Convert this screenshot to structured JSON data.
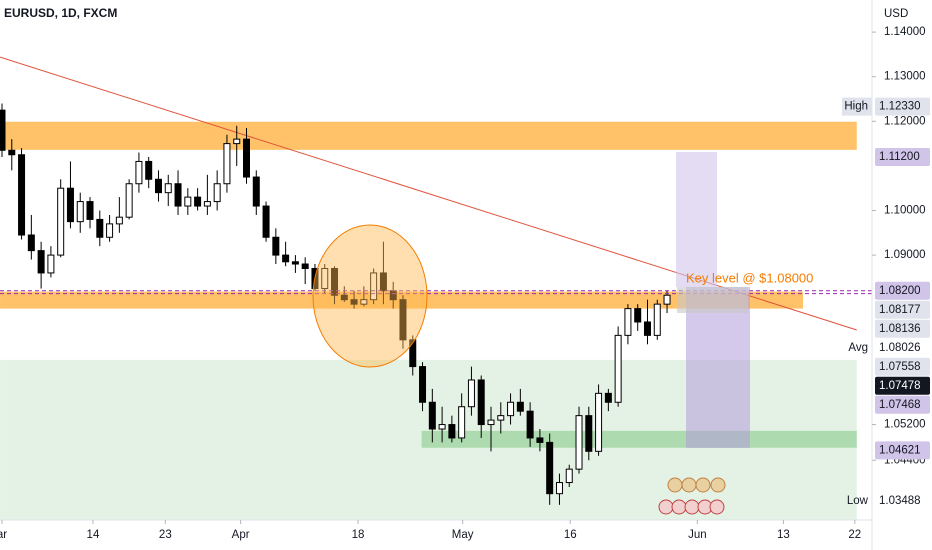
{
  "chart_data": {
    "type": "candlestick",
    "title": "EURUSD, 1D, FXCM",
    "currency": "USD",
    "annotation": "Key level @ $1.08000",
    "ylim": [
      1.0306,
      1.1472
    ],
    "yticks": [
      {
        "value": 1.14,
        "label": "1.14000"
      },
      {
        "value": 1.13,
        "label": "1.13000"
      },
      {
        "value": 1.12,
        "label": "1.12000"
      },
      {
        "value": 1.1,
        "label": "1.10000"
      },
      {
        "value": 1.09,
        "label": "1.09000"
      },
      {
        "value": 1.052,
        "label": "1.05200"
      },
      {
        "value": 1.044,
        "label": "1.04400"
      }
    ],
    "xticks": [
      {
        "value": 0,
        "label": "ar"
      },
      {
        "value": 9.3,
        "label": "14"
      },
      {
        "value": 16.7,
        "label": "23"
      },
      {
        "value": 24.4,
        "label": "Apr"
      },
      {
        "value": 36.4,
        "label": "18"
      },
      {
        "value": 47.1,
        "label": "May"
      },
      {
        "value": 58.1,
        "label": "16"
      },
      {
        "value": 71.1,
        "label": "Jun"
      },
      {
        "value": 79.9,
        "label": "13"
      },
      {
        "value": 87.2,
        "label": "22"
      }
    ],
    "up_color": "#ffffff",
    "down_color": "#000000",
    "open": [
      1.1225,
      1.1135,
      1.1125,
      1.0945,
      1.091,
      1.086,
      1.09,
      1.105,
      1.0975,
      1.102,
      1.098,
      1.094,
      1.097,
      1.0985,
      1.106,
      1.111,
      1.107,
      1.104,
      1.106,
      1.101,
      1.103,
      1.101,
      1.102,
      1.106,
      1.115,
      1.116,
      1.1075,
      1.101,
      1.094,
      1.09,
      1.0885,
      1.088,
      1.087,
      1.0825,
      1.087,
      1.081,
      1.08,
      1.079,
      1.08,
      1.086,
      1.082,
      1.08,
      1.071,
      1.065,
      1.057,
      1.051,
      1.052,
      1.049,
      1.056,
      1.062,
      1.052,
      1.053,
      1.054,
      1.057,
      1.055,
      1.049,
      1.048,
      1.0365,
      1.039,
      1.042,
      1.054,
      1.046,
      1.059,
      1.057,
      1.072,
      1.078,
      1.075,
      1.072,
      1.079
    ],
    "high": [
      1.124,
      1.116,
      1.114,
      1.099,
      1.093,
      1.092,
      1.107,
      1.111,
      1.104,
      1.103,
      1.1,
      1.099,
      1.103,
      1.107,
      1.113,
      1.112,
      1.109,
      1.108,
      1.109,
      1.105,
      1.105,
      1.108,
      1.109,
      1.117,
      1.119,
      1.1185,
      1.109,
      1.102,
      1.096,
      1.093,
      1.09,
      1.0895,
      1.088,
      1.088,
      1.0875,
      1.083,
      1.082,
      1.083,
      1.087,
      1.093,
      1.084,
      1.081,
      1.072,
      1.066,
      1.06,
      1.056,
      1.054,
      1.059,
      1.065,
      1.063,
      1.056,
      1.057,
      1.059,
      1.06,
      1.057,
      1.051,
      1.05,
      1.041,
      1.043,
      1.056,
      1.056,
      1.061,
      1.06,
      1.074,
      1.079,
      1.079,
      1.08,
      1.08,
      1.082
    ],
    "low": [
      1.112,
      1.109,
      1.0935,
      1.089,
      1.0825,
      1.085,
      1.0895,
      1.096,
      1.095,
      1.096,
      1.092,
      1.093,
      1.095,
      1.098,
      1.104,
      1.105,
      1.102,
      1.101,
      1.099,
      1.099,
      1.1,
      1.099,
      1.1,
      1.104,
      1.11,
      1.106,
      1.099,
      1.093,
      1.088,
      1.0875,
      1.086,
      1.0835,
      1.082,
      1.0815,
      1.079,
      1.0795,
      1.078,
      1.0785,
      1.079,
      1.079,
      1.078,
      1.069,
      1.063,
      1.055,
      1.048,
      1.048,
      1.048,
      1.048,
      1.054,
      1.049,
      1.046,
      1.05,
      1.052,
      1.054,
      1.047,
      1.046,
      1.034,
      1.034,
      1.038,
      1.041,
      1.044,
      1.045,
      1.055,
      1.056,
      1.07,
      1.073,
      1.07,
      1.071,
      1.077
    ],
    "close": [
      1.1135,
      1.1125,
      1.0945,
      1.091,
      1.086,
      1.09,
      1.105,
      1.0975,
      1.102,
      1.098,
      1.094,
      1.097,
      1.0985,
      1.106,
      1.111,
      1.107,
      1.104,
      1.106,
      1.101,
      1.103,
      1.101,
      1.102,
      1.106,
      1.115,
      1.116,
      1.1075,
      1.101,
      1.094,
      1.09,
      1.0885,
      1.088,
      1.087,
      1.0825,
      1.087,
      1.081,
      1.08,
      1.079,
      1.08,
      1.086,
      1.082,
      1.08,
      1.071,
      1.065,
      1.057,
      1.051,
      1.052,
      1.049,
      1.056,
      1.062,
      1.052,
      1.053,
      1.054,
      1.057,
      1.055,
      1.049,
      1.048,
      1.0365,
      1.039,
      1.042,
      1.054,
      1.046,
      1.059,
      1.057,
      1.072,
      1.078,
      1.075,
      1.072,
      1.079,
      1.081
    ],
    "zones": [
      {
        "from": 1.1136,
        "to": 1.1199,
        "x_from": -0.2,
        "x_to": 87.4,
        "color": "#ffb74d"
      },
      {
        "from": 1.078,
        "to": 1.0818,
        "x_from": -0.2,
        "x_to": 81.9,
        "color": "#ffb74d"
      },
      {
        "from": 1.0306,
        "to": 1.0665,
        "x_from": -0.2,
        "x_to": 87.4,
        "color": "#dff0e0"
      },
      {
        "from": 1.0468,
        "to": 1.0506,
        "x_from": 42.9,
        "x_to": 87.4,
        "color": "#a5d6a7"
      }
    ],
    "trendline": {
      "x": [
        -0.2,
        87.4
      ],
      "y": [
        1.1344,
        1.0732
      ],
      "color": "#e0533b"
    },
    "price_labels": [
      {
        "tag": "High",
        "price": {
          "value": 1.1233,
          "label": "1.12330"
        },
        "kind": "gray"
      },
      {
        "price": {
          "value": 1.112,
          "label": "1.11200"
        },
        "kind": "purple"
      },
      {
        "price": {
          "value": 1.082,
          "label": "1.08200"
        },
        "kind": "purple",
        "line": true
      },
      {
        "price": {
          "value": 1.08177,
          "label": "1.08177"
        },
        "kind": "gray"
      },
      {
        "price": {
          "value": 1.08136,
          "label": "1.08136"
        },
        "kind": "gray",
        "line": true
      },
      {
        "tag": "Avg",
        "price": {
          "value": 1.08026,
          "label": "1.08026"
        },
        "kind": "plain"
      },
      {
        "price": {
          "value": 1.07558,
          "label": "1.07558"
        },
        "kind": "gray"
      },
      {
        "price": {
          "value": 1.07478,
          "label": "1.07478"
        },
        "kind": "black"
      },
      {
        "price": {
          "value": 1.07468,
          "label": "1.07468"
        },
        "kind": "purple"
      },
      {
        "price": {
          "value": 1.04621,
          "label": "1.04621"
        },
        "kind": "purple"
      },
      {
        "tag": "Low",
        "price": {
          "value": 1.03488,
          "label": "1.03488"
        },
        "kind": "plain"
      }
    ]
  }
}
